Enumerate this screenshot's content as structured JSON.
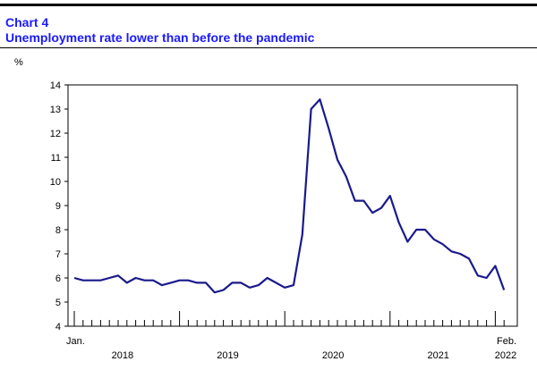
{
  "header": {
    "number": "Chart 4",
    "title": "Unemployment rate lower than before the pandemic",
    "color": "#1a1aff"
  },
  "chart_data": {
    "type": "line",
    "title": "Unemployment rate lower than before the pandemic",
    "ylabel": "%",
    "ylim": [
      4,
      14
    ],
    "yticks": [
      4,
      5,
      6,
      7,
      8,
      9,
      10,
      11,
      12,
      13,
      14
    ],
    "x_start": "Jan. 2018",
    "x_end": "Feb. 2022",
    "x_start_label": "Jan.",
    "x_end_label": "Feb.",
    "year_labels": [
      "2018",
      "2019",
      "2020",
      "2021",
      "2022"
    ],
    "grid": false,
    "line_color": "#1a1a8c",
    "series": [
      {
        "values": [
          6.0,
          5.9,
          5.9,
          5.9,
          6.0,
          6.1,
          5.8,
          6.0,
          5.9,
          5.9,
          5.7,
          5.8,
          5.9,
          5.9,
          5.8,
          5.8,
          5.4,
          5.5,
          5.8,
          5.8,
          5.6,
          5.7,
          6.0,
          5.8,
          5.6,
          5.7,
          7.8,
          13.0,
          13.4,
          12.2,
          10.9,
          10.2,
          9.2,
          9.2,
          8.7,
          8.9,
          9.4,
          8.3,
          7.5,
          8.0,
          8.0,
          7.6,
          7.4,
          7.1,
          7.0,
          6.8,
          6.1,
          6.0,
          6.5,
          5.5
        ]
      }
    ]
  }
}
